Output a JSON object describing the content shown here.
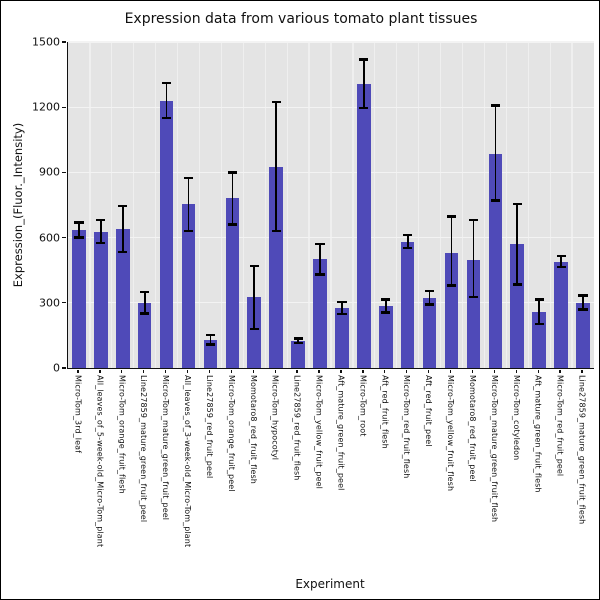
{
  "figure": {
    "background": "#ffffff",
    "border_color": "#000000"
  },
  "chart_data": {
    "type": "bar",
    "title": "Expression data from various tomato plant tissues",
    "xlabel": "Experiment",
    "ylabel": "Expression_(Fluor._Intensity)",
    "ylim": [
      0,
      1500
    ],
    "yticks": [
      0,
      300,
      600,
      900,
      1200,
      1500
    ],
    "grid": "on",
    "legend": "none",
    "plot_background": "#e4e4e4",
    "gridline_color": "#f3f3f3",
    "bar_color": "#4f4ab8",
    "error_bar_color": "#000000",
    "categories": [
      "Micro-Tom_3rd_leaf",
      "All_leaves_of_5-week-old_Micro-Tom_plant",
      "Micro-Tom_orange_fruit_flesh",
      "Line27859_mature_green_fruit_peel",
      "Micro-Tom_mature_green_fruit_peel",
      "All_leaves_of_3-week-old_Micro-Tom_plant",
      "Line27859_red_fruit_peel",
      "Micro-Tom_orange_fruit_peel",
      "Momotaro8_red_fruit_flesh",
      "Micro-Tom_hypocotyl",
      "Line27859_red_fruit_flesh",
      "Micro-Tom_yellow_fruit_peel",
      "Aft_mature_green_fruit_peel",
      "Micro-Tom_root",
      "Aft_red_fruit_flesh",
      "Micro-Tom_red_fruit_flesh",
      "Aft_red_fruit_peel",
      "Micro-Tom_yellow_fruit_flesh",
      "Momotaro8_red_fruit_peel",
      "Micro-Tom_mature_green_fruit_flesh",
      "Micro-Tom_cotyledon",
      "Aft_mature_green_fruit_flesh",
      "Micro-Tom_red_fruit_peel",
      "Line27859_mature_green_fruit_flesh"
    ],
    "values": [
      635,
      625,
      640,
      300,
      1230,
      755,
      130,
      780,
      325,
      925,
      125,
      500,
      275,
      1305,
      285,
      582,
      320,
      530,
      497,
      985,
      570,
      258,
      490,
      300
    ],
    "error_low": [
      600,
      575,
      535,
      250,
      1150,
      630,
      108,
      660,
      180,
      630,
      115,
      430,
      248,
      1195,
      255,
      553,
      292,
      380,
      327,
      770,
      385,
      203,
      465,
      270
    ],
    "error_high": [
      670,
      680,
      745,
      350,
      1310,
      875,
      152,
      900,
      468,
      1225,
      135,
      570,
      303,
      1420,
      315,
      612,
      355,
      697,
      682,
      1207,
      755,
      315,
      515,
      333
    ]
  }
}
